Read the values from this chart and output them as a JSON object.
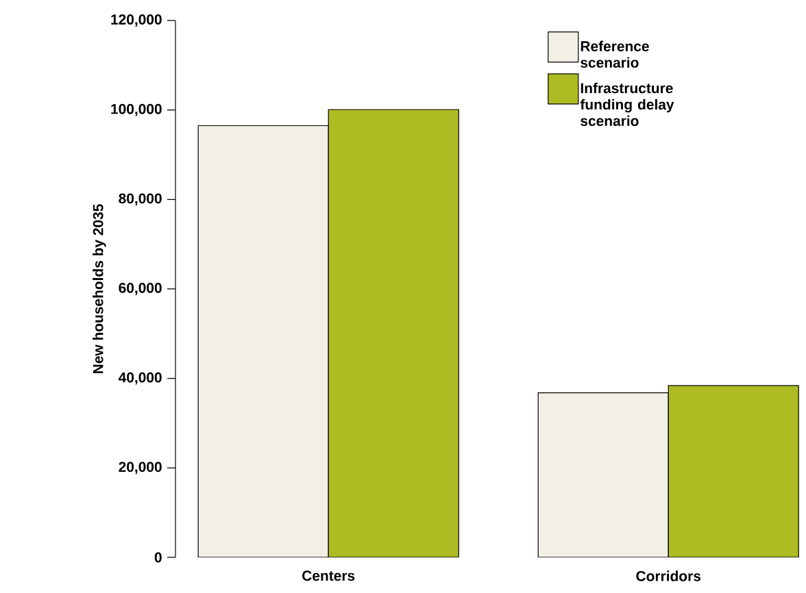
{
  "chart_data": {
    "type": "bar",
    "ylabel": "New households by 2035",
    "categories": [
      "Centers",
      "Corridors"
    ],
    "series": [
      {
        "name": "Reference scenario",
        "color": "#f2efe6",
        "values": [
          96500,
          36800
        ]
      },
      {
        "name": "Infrastructure funding delay scenario",
        "color": "#acbc22",
        "values": [
          100100,
          38400
        ]
      }
    ],
    "ylim": [
      0,
      120000
    ],
    "yticks": [
      {
        "value": 0,
        "label": "0"
      },
      {
        "value": 20000,
        "label": "20,000"
      },
      {
        "value": 40000,
        "label": "40,000"
      },
      {
        "value": 60000,
        "label": "60,000"
      },
      {
        "value": 80000,
        "label": "80,000"
      },
      {
        "value": 100000,
        "label": "100,000"
      },
      {
        "value": 120000,
        "label": "120,000"
      }
    ],
    "grid": false,
    "legend": "top right"
  }
}
